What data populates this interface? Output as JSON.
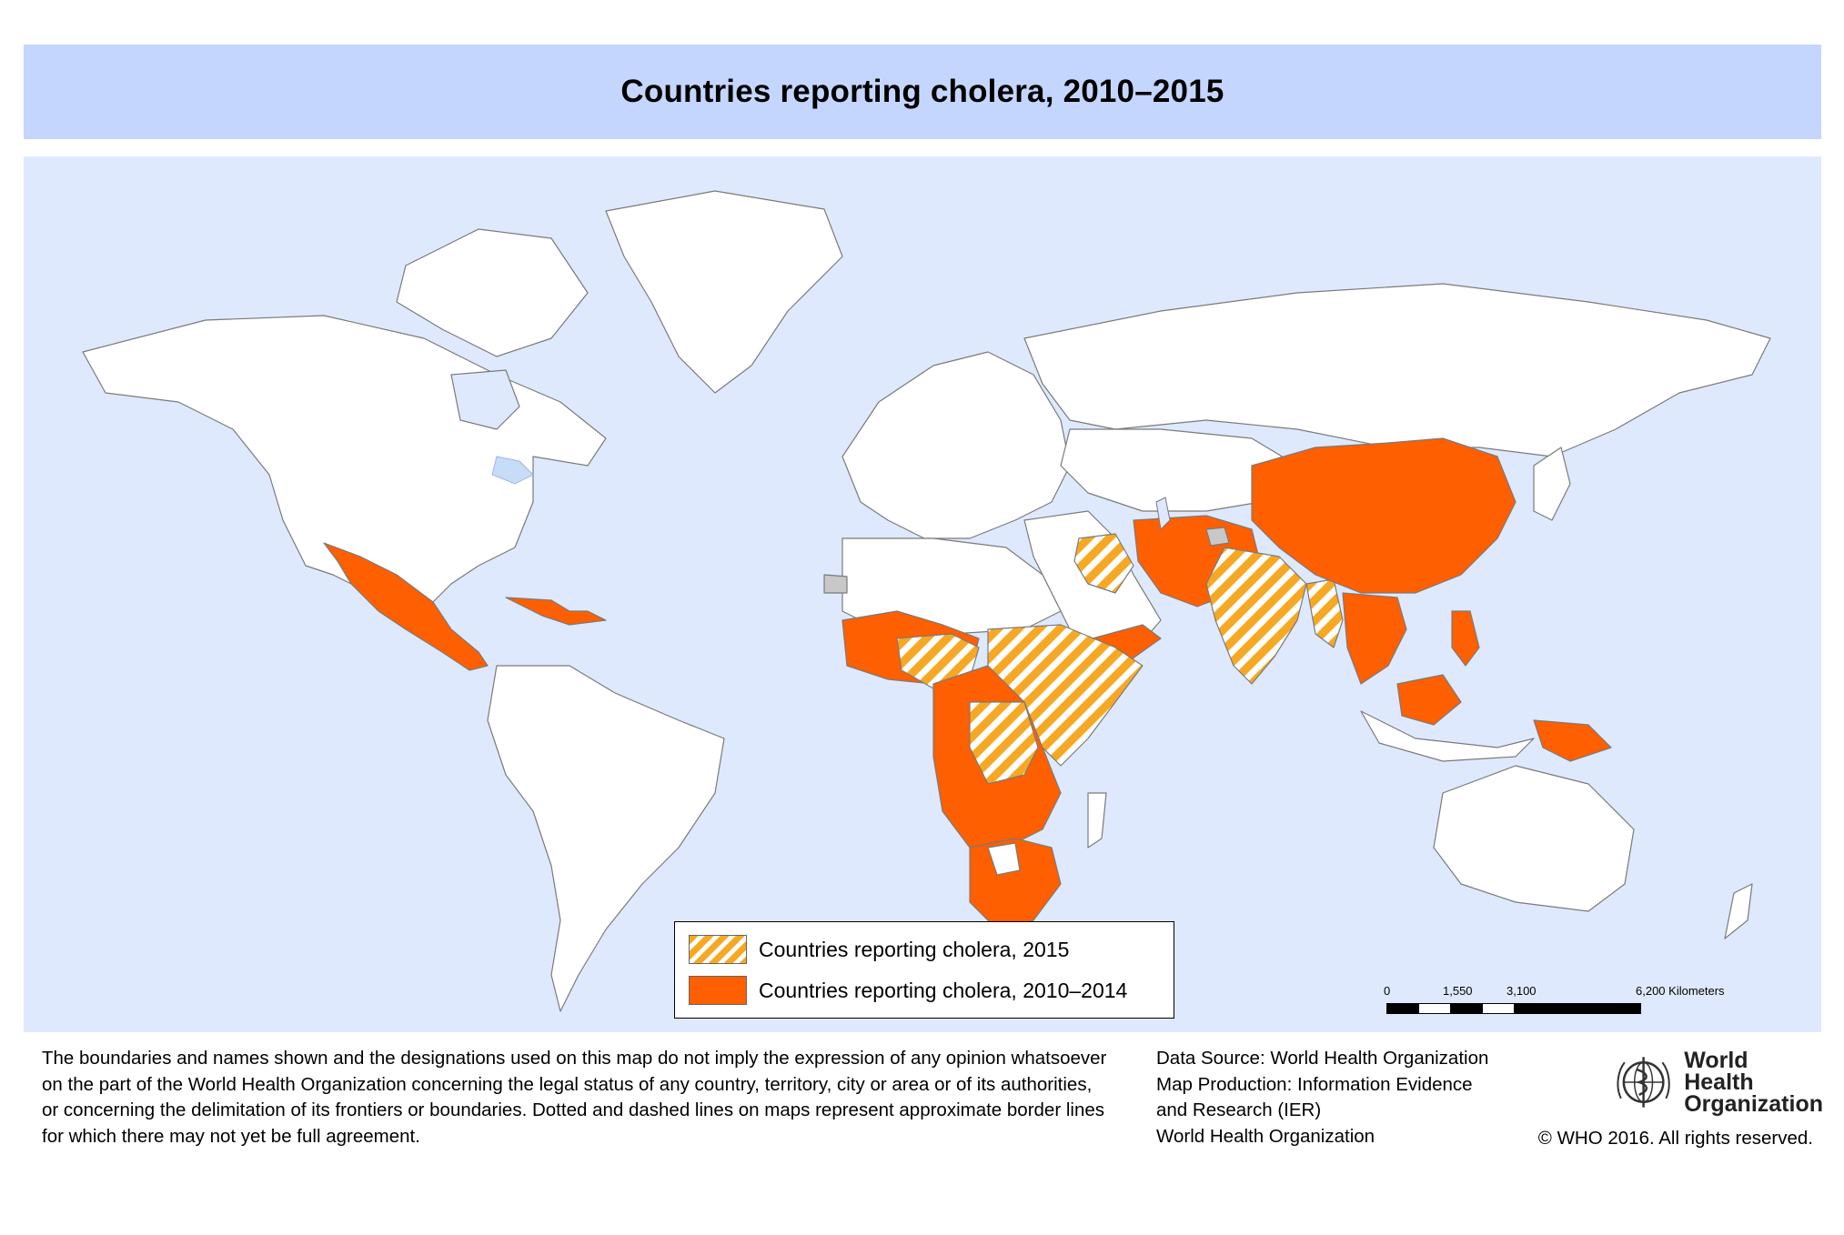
{
  "title": "Countries reporting cholera, 2010–2015",
  "legend": {
    "items": [
      {
        "label": "Countries reporting cholera, 2015",
        "pattern": "hatched",
        "color": "#f7a823"
      },
      {
        "label": "Countries reporting cholera, 2010–2014",
        "pattern": "solid",
        "color": "#fe5f00"
      }
    ]
  },
  "scale": {
    "ticks": [
      "0",
      "1,550",
      "3,100",
      "6,200 Kilometers"
    ]
  },
  "disclaimer": [
    "The boundaries and names shown and the designations used on this map do not imply the expression of any opinion whatsoever",
    "on the part of the World Health Organization concerning the legal status of any country, territory, city or area or of its authorities,",
    "or concerning the delimitation of its frontiers or boundaries. Dotted and dashed lines on maps represent approximate border lines",
    "for which there may not yet be full agreement."
  ],
  "source": [
    "Data Source: World Health Organization",
    "Map Production: Information Evidence",
    "and Research (IER)",
    "World Health Organization"
  ],
  "logo": {
    "line1": "World Health",
    "line2": "Organization"
  },
  "copyright": "© WHO 2016. All rights reserved.",
  "colors": {
    "title_bar": "#c4d6fd",
    "ocean": "#dfe9fd",
    "land": "#ffffff",
    "cholera_2010_2014": "#fe5f00",
    "cholera_2015": "#f7a823",
    "no_data": "#c8c8c8"
  }
}
